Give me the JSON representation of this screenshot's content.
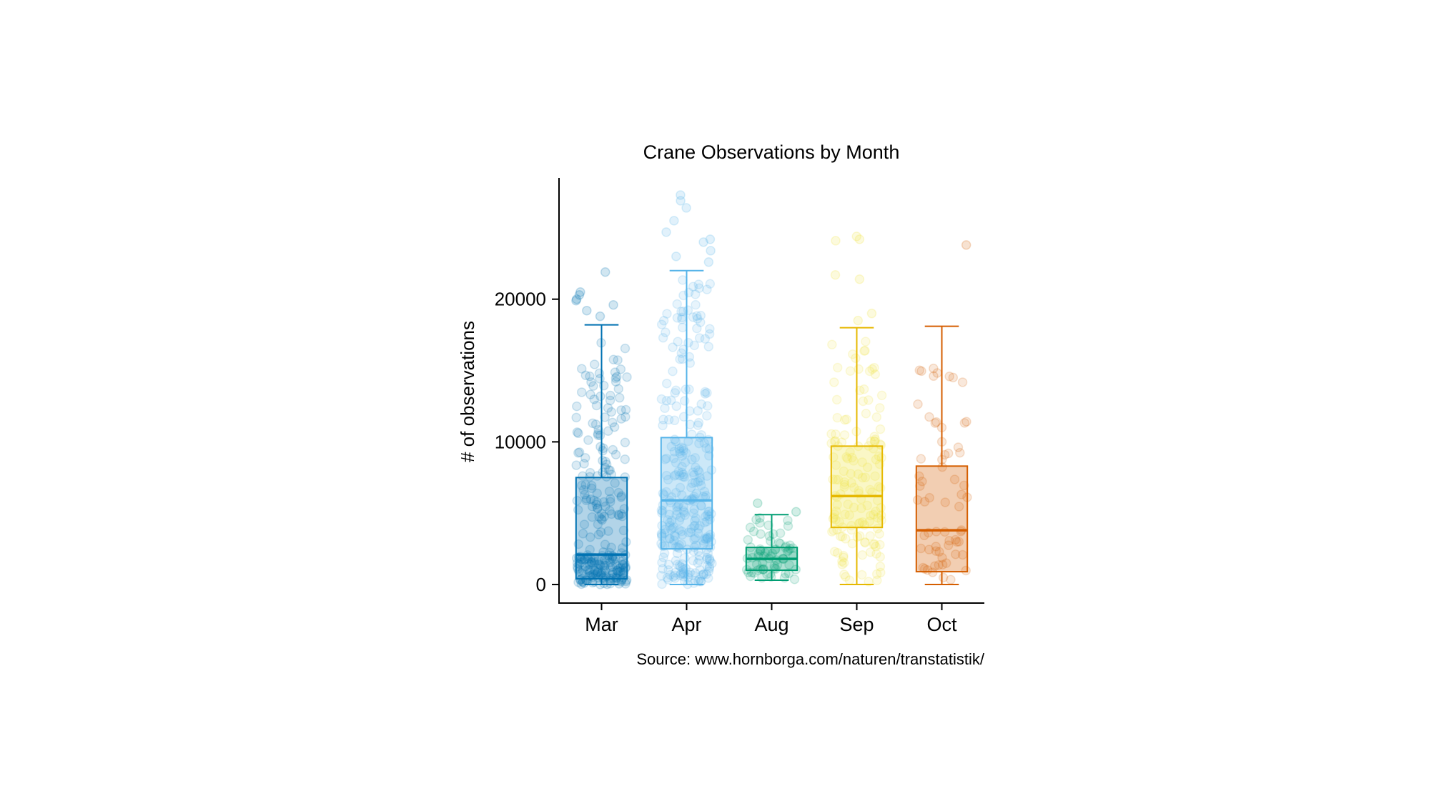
{
  "chart_data": {
    "type": "box",
    "title": "Crane Observations by Month",
    "xlabel": "",
    "ylabel": "# of observations",
    "caption": "Source: www.hornborga.com/naturen/transtatistik/",
    "ylim": [
      -1300,
      28500
    ],
    "yticks": [
      0,
      10000,
      20000
    ],
    "yticklabels": [
      "0",
      "10000",
      "20000"
    ],
    "categories": [
      "Mar",
      "Apr",
      "Aug",
      "Sep",
      "Oct"
    ],
    "grid": false,
    "legend": "none",
    "series": [
      {
        "category": "Mar",
        "color": "#0072B2",
        "whisker_low": 0,
        "q1": 400,
        "median": 2100,
        "q3": 7500,
        "whisker_high": 18200,
        "outliers": [
          18800,
          19200,
          19600,
          19900,
          20000,
          20300,
          20500,
          21900
        ],
        "n_points": 260,
        "point_max": 17000
      },
      {
        "category": "Apr",
        "color": "#56B4E9",
        "whisker_low": 0,
        "q1": 2500,
        "median": 5900,
        "q3": 10300,
        "whisker_high": 22000,
        "outliers": [
          22600,
          23000,
          23400,
          24000,
          24200,
          24700,
          25500,
          26400,
          26900,
          27300
        ],
        "n_points": 300,
        "point_max": 21500
      },
      {
        "category": "Aug",
        "color": "#009E73",
        "whisker_low": 300,
        "q1": 1000,
        "median": 1800,
        "q3": 2600,
        "whisker_high": 4900,
        "outliers": [
          5100,
          5700
        ],
        "n_points": 70,
        "point_max": 4700
      },
      {
        "category": "Sep",
        "color": "#F0E442",
        "stroke": "#E6B800",
        "whisker_low": 0,
        "q1": 4000,
        "median": 6200,
        "q3": 9700,
        "whisker_high": 18000,
        "outliers": [
          18500,
          19000,
          21400,
          21700,
          24100,
          24200,
          24400
        ],
        "n_points": 150,
        "point_max": 17500
      },
      {
        "category": "Oct",
        "color": "#D55E00",
        "stroke": "#D55E00",
        "whisker_low": 0,
        "q1": 900,
        "median": 3800,
        "q3": 8300,
        "whisker_high": 18100,
        "outliers": [
          23800
        ],
        "n_points": 65,
        "point_max": 16000
      }
    ]
  }
}
